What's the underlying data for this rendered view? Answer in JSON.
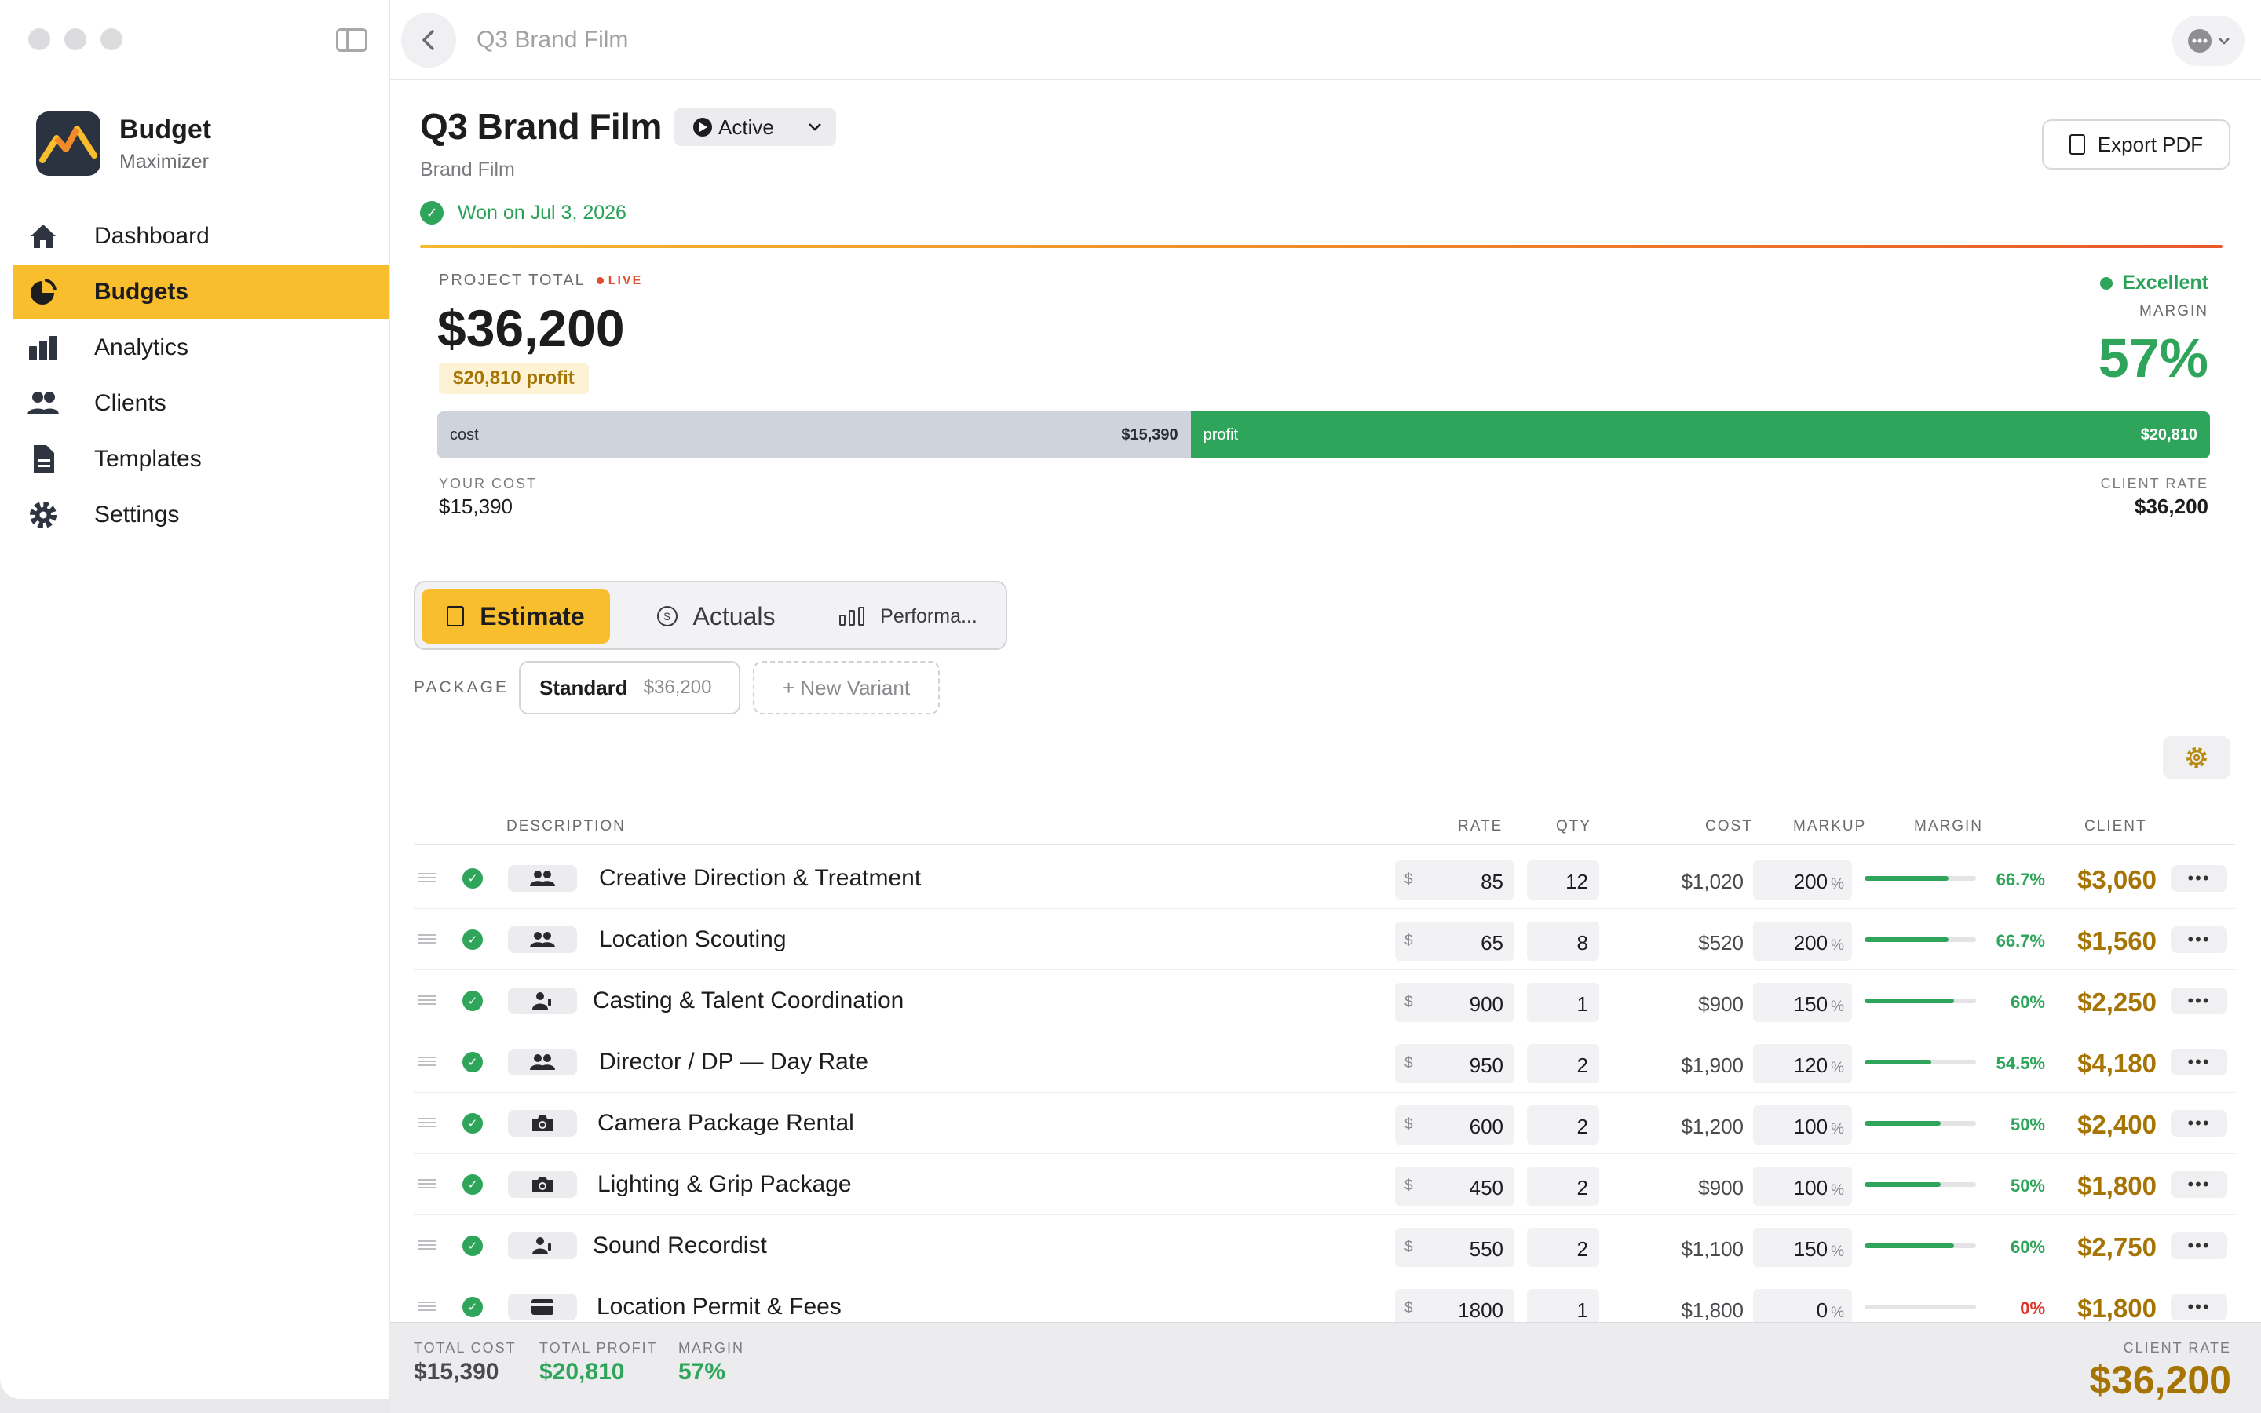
{
  "window": {
    "title": "Q3 Brand Film"
  },
  "brand": {
    "name": "Budget",
    "subtitle": "Maximizer"
  },
  "nav": [
    {
      "label": "Dashboard",
      "icon": "home-icon"
    },
    {
      "label": "Budgets",
      "icon": "pie-chart-icon",
      "active": true
    },
    {
      "label": "Analytics",
      "icon": "bar-chart-icon"
    },
    {
      "label": "Clients",
      "icon": "users-icon"
    },
    {
      "label": "Templates",
      "icon": "document-icon"
    },
    {
      "label": "Settings",
      "icon": "gear-icon"
    }
  ],
  "header": {
    "title": "Q3 Brand Film",
    "status": "Active",
    "subtitle": "Brand Film",
    "won": "Won on Jul 3, 2026",
    "export_label": "Export PDF"
  },
  "summary": {
    "project_total_label": "PROJECT TOTAL",
    "live_label": "LIVE",
    "project_total": "$36,200",
    "profit_chip": "$20,810 profit",
    "rating": "Excellent",
    "margin_label": "MARGIN",
    "margin_value": "57%",
    "cost_label": "cost",
    "cost_value": "$15,390",
    "profit_label": "profit",
    "profit_value": "$20,810",
    "cost_fraction": 0.425,
    "your_cost_label": "YOUR COST",
    "your_cost": "$15,390",
    "client_rate_label": "CLIENT RATE",
    "client_rate": "$36,200"
  },
  "tabs": [
    {
      "label": "Estimate",
      "active": true
    },
    {
      "label": "Actuals"
    },
    {
      "label": "Performa..."
    }
  ],
  "package": {
    "label": "PACKAGE",
    "name": "Standard",
    "price": "$36,200",
    "new_variant": "+ New Variant"
  },
  "table": {
    "headers": {
      "description": "DESCRIPTION",
      "rate": "RATE",
      "qty": "QTY",
      "cost": "COST",
      "markup": "MARKUP",
      "margin": "MARGIN",
      "client": "CLIENT"
    },
    "currency": "$",
    "rows": [
      {
        "desc": "Creative Direction & Treatment",
        "icon": "team-icon",
        "rate": "85",
        "qty": "12",
        "cost": "$1,020",
        "markup": "200",
        "margin_pct": "66.7%",
        "margin_frac": 0.75,
        "client": "$3,060"
      },
      {
        "desc": "Location Scouting",
        "icon": "team-icon",
        "rate": "65",
        "qty": "8",
        "cost": "$520",
        "markup": "200",
        "margin_pct": "66.7%",
        "margin_frac": 0.75,
        "client": "$1,560"
      },
      {
        "desc": "Casting & Talent Coordination",
        "icon": "person-icon",
        "rate": "900",
        "qty": "1",
        "cost": "$900",
        "markup": "150",
        "margin_pct": "60%",
        "margin_frac": 0.8,
        "client": "$2,250"
      },
      {
        "desc": "Director / DP — Day Rate",
        "icon": "team-icon",
        "rate": "950",
        "qty": "2",
        "cost": "$1,900",
        "markup": "120",
        "margin_pct": "54.5%",
        "margin_frac": 0.6,
        "client": "$4,180"
      },
      {
        "desc": "Camera Package Rental",
        "icon": "camera-icon",
        "rate": "600",
        "qty": "2",
        "cost": "$1,200",
        "markup": "100",
        "margin_pct": "50%",
        "margin_frac": 0.68,
        "client": "$2,400"
      },
      {
        "desc": "Lighting & Grip Package",
        "icon": "camera-icon",
        "rate": "450",
        "qty": "2",
        "cost": "$900",
        "markup": "100",
        "margin_pct": "50%",
        "margin_frac": 0.68,
        "client": "$1,800"
      },
      {
        "desc": "Sound Recordist",
        "icon": "person-icon",
        "rate": "550",
        "qty": "2",
        "cost": "$1,100",
        "markup": "150",
        "margin_pct": "60%",
        "margin_frac": 0.8,
        "client": "$2,750"
      },
      {
        "desc": "Location Permit & Fees",
        "icon": "card-icon",
        "rate": "1800",
        "qty": "1",
        "cost": "$1,800",
        "markup": "0",
        "margin_pct": "0%",
        "margin_frac": 0,
        "client": "$1,800"
      }
    ]
  },
  "footer": {
    "total_cost_label": "TOTAL COST",
    "total_cost": "$15,390",
    "total_profit_label": "TOTAL PROFIT",
    "total_profit": "$20,810",
    "margin_label": "MARGIN",
    "margin": "57%",
    "client_rate_label": "CLIENT RATE",
    "client_rate": "$36,200"
  },
  "colors": {
    "accent": "#f8be2d",
    "success": "#2ea55a",
    "gold": "#a57403",
    "danger": "#e0342a"
  }
}
